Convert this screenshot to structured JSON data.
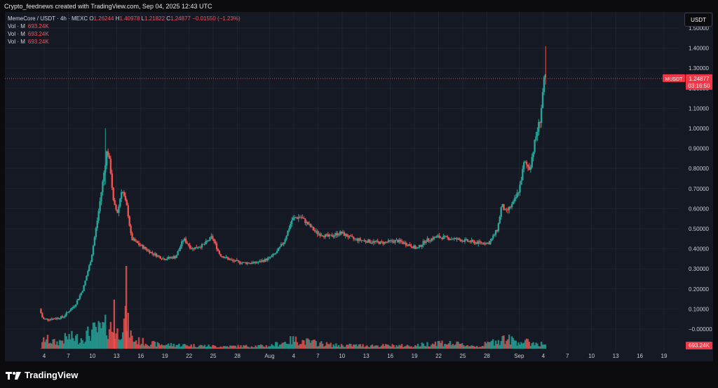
{
  "header": {
    "title": "Crypto_feednews created with TradingView.com, Sep 04, 2025 12:43 UTC"
  },
  "legend": {
    "symbol": "MemeCore / USDT · 4h · MEXC",
    "o_label": "O",
    "o_value": "1.26244",
    "h_label": "H",
    "h_value": "1.40978",
    "l_label": "L",
    "l_value": "1.21822",
    "c_label": "C",
    "c_value": "1.24877",
    "change": "−0.01550 (−1.23%)",
    "vol_rows": [
      {
        "label": "Vol · M",
        "value": "693.24K"
      },
      {
        "label": "Vol · M",
        "value": "693.24K"
      },
      {
        "label": "Vol · M",
        "value": "693.24K"
      }
    ]
  },
  "currency_button": "USDT",
  "price_tag": {
    "symbol": "MUSDT",
    "price": "1.24877",
    "countdown": "03:16:50"
  },
  "volume_tag": "693.24K",
  "branding": {
    "name": "TradingView",
    "icon": "tradingview-logo-icon"
  },
  "colors": {
    "up": "#26a69a",
    "down": "#ef5350",
    "last_price": "#f23645",
    "background": "#151924"
  },
  "chart_data": {
    "type": "candlestick",
    "title": "MemeCore / USDT · 4h · MEXC",
    "ylim": [
      -0.05,
      1.55
    ],
    "y_ticks": [
      "−0.00000",
      "0.10000",
      "0.20000",
      "0.30000",
      "0.40000",
      "0.50000",
      "0.60000",
      "0.70000",
      "0.80000",
      "0.90000",
      "1.00000",
      "1.10000",
      "1.20000",
      "1.30000",
      "1.40000",
      "1.50000"
    ],
    "y_tick_values": [
      0,
      0.1,
      0.2,
      0.3,
      0.4,
      0.5,
      0.6,
      0.7,
      0.8,
      0.9,
      1.0,
      1.1,
      1.2,
      1.3,
      1.4,
      1.5
    ],
    "x_ticks": [
      {
        "label": "4",
        "day": 4
      },
      {
        "label": "7",
        "day": 7
      },
      {
        "label": "10",
        "day": 10
      },
      {
        "label": "13",
        "day": 13
      },
      {
        "label": "16",
        "day": 16
      },
      {
        "label": "19",
        "day": 19
      },
      {
        "label": "22",
        "day": 22
      },
      {
        "label": "25",
        "day": 25
      },
      {
        "label": "28",
        "day": 28
      },
      {
        "label": "Aug",
        "day": 32
      },
      {
        "label": "4",
        "day": 35
      },
      {
        "label": "7",
        "day": 38
      },
      {
        "label": "10",
        "day": 41
      },
      {
        "label": "13",
        "day": 44
      },
      {
        "label": "16",
        "day": 47
      },
      {
        "label": "19",
        "day": 50
      },
      {
        "label": "22",
        "day": 53
      },
      {
        "label": "25",
        "day": 56
      },
      {
        "label": "28",
        "day": 59
      },
      {
        "label": "Sep",
        "day": 63
      },
      {
        "label": "4",
        "day": 66
      },
      {
        "label": "7",
        "day": 69
      },
      {
        "label": "10",
        "day": 72
      },
      {
        "label": "13",
        "day": 75
      },
      {
        "label": "16",
        "day": 78
      },
      {
        "label": "19",
        "day": 81
      }
    ],
    "x_day_range": [
      3.5,
      81.5
    ],
    "last_price": 1.24877,
    "price_anchors": [
      [
        3.6,
        0.1
      ],
      [
        4.0,
        0.05
      ],
      [
        5.0,
        0.05
      ],
      [
        6.5,
        0.06
      ],
      [
        8.0,
        0.12
      ],
      [
        9.0,
        0.2
      ],
      [
        10.0,
        0.35
      ],
      [
        10.8,
        0.55
      ],
      [
        11.5,
        0.75
      ],
      [
        12.0,
        0.9
      ],
      [
        12.4,
        0.8
      ],
      [
        12.8,
        0.62
      ],
      [
        13.3,
        0.58
      ],
      [
        13.8,
        0.7
      ],
      [
        14.5,
        0.6
      ],
      [
        15.0,
        0.45
      ],
      [
        16.0,
        0.42
      ],
      [
        17.5,
        0.38
      ],
      [
        19.0,
        0.35
      ],
      [
        20.5,
        0.36
      ],
      [
        21.5,
        0.45
      ],
      [
        22.5,
        0.4
      ],
      [
        24.0,
        0.42
      ],
      [
        25.0,
        0.46
      ],
      [
        26.0,
        0.37
      ],
      [
        27.5,
        0.34
      ],
      [
        29.0,
        0.33
      ],
      [
        30.5,
        0.33
      ],
      [
        32.0,
        0.35
      ],
      [
        33.0,
        0.38
      ],
      [
        34.0,
        0.44
      ],
      [
        35.0,
        0.55
      ],
      [
        36.0,
        0.56
      ],
      [
        37.0,
        0.52
      ],
      [
        38.0,
        0.48
      ],
      [
        39.5,
        0.46
      ],
      [
        41.0,
        0.48
      ],
      [
        42.5,
        0.45
      ],
      [
        44.0,
        0.44
      ],
      [
        46.0,
        0.43
      ],
      [
        48.0,
        0.44
      ],
      [
        49.5,
        0.42
      ],
      [
        50.5,
        0.4
      ],
      [
        51.5,
        0.44
      ],
      [
        53.0,
        0.46
      ],
      [
        55.0,
        0.45
      ],
      [
        56.5,
        0.44
      ],
      [
        58.0,
        0.43
      ],
      [
        59.5,
        0.43
      ],
      [
        60.5,
        0.5
      ],
      [
        61.0,
        0.62
      ],
      [
        61.5,
        0.58
      ],
      [
        62.5,
        0.63
      ],
      [
        63.2,
        0.7
      ],
      [
        63.8,
        0.83
      ],
      [
        64.5,
        0.8
      ],
      [
        65.2,
        0.95
      ],
      [
        65.8,
        1.05
      ],
      [
        66.2,
        1.22
      ],
      [
        66.4,
        1.25
      ]
    ],
    "volume_anchors": [
      [
        3.6,
        0.02
      ],
      [
        4.0,
        0.35
      ],
      [
        5.5,
        0.2
      ],
      [
        7.0,
        0.4
      ],
      [
        8.5,
        0.35
      ],
      [
        10.0,
        0.6
      ],
      [
        11.0,
        0.65
      ],
      [
        12.0,
        0.8
      ],
      [
        13.0,
        0.5
      ],
      [
        13.8,
        0.85
      ],
      [
        14.2,
        1.0
      ],
      [
        15.0,
        0.3
      ],
      [
        18.0,
        0.15
      ],
      [
        22.0,
        0.12
      ],
      [
        26.0,
        0.08
      ],
      [
        32.0,
        0.1
      ],
      [
        35.0,
        0.3
      ],
      [
        40.0,
        0.12
      ],
      [
        50.0,
        0.1
      ],
      [
        53.0,
        0.22
      ],
      [
        58.0,
        0.08
      ],
      [
        61.0,
        0.35
      ],
      [
        63.0,
        0.25
      ],
      [
        66.4,
        0.15
      ]
    ]
  }
}
